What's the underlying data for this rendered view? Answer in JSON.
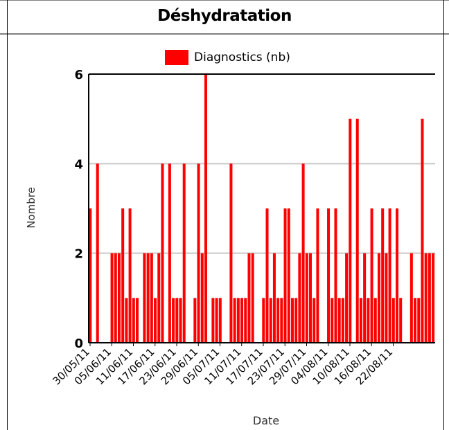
{
  "chart_data": {
    "type": "bar",
    "title": "Déshydratation",
    "xlabel": "Date",
    "ylabel": "Nombre",
    "ylim": [
      0,
      6
    ],
    "yticks": [
      0,
      2,
      4,
      6
    ],
    "grid": true,
    "legend_position": "top",
    "color": "#ff0000",
    "series": [
      {
        "name": "Diagnostics (nb)",
        "values": [
          3,
          0,
          4,
          0,
          0,
          0,
          2,
          2,
          2,
          3,
          1,
          3,
          1,
          1,
          0,
          2,
          2,
          2,
          1,
          2,
          4,
          0,
          4,
          1,
          1,
          1,
          4,
          0,
          0,
          1,
          4,
          2,
          6,
          0,
          1,
          1,
          1,
          0,
          0,
          4,
          1,
          1,
          1,
          1,
          2,
          2,
          0,
          0,
          1,
          3,
          1,
          2,
          1,
          1,
          3,
          3,
          1,
          1,
          2,
          4,
          2,
          2,
          1,
          3,
          0,
          0,
          3,
          1,
          3,
          1,
          1,
          2,
          5,
          0,
          5,
          1,
          2,
          1,
          3,
          1,
          2,
          3,
          2,
          3,
          1,
          3,
          1,
          0,
          0,
          2,
          1,
          1,
          5,
          2,
          2,
          2
        ]
      }
    ],
    "x_tick_labels": [
      "30/05/11",
      "05/06/11",
      "11/06/11",
      "17/06/11",
      "23/06/11",
      "29/06/11",
      "05/07/11",
      "11/07/11",
      "17/07/11",
      "23/07/11",
      "29/07/11",
      "04/08/11",
      "10/08/11",
      "16/08/11",
      "22/08/11"
    ],
    "x_tick_interval_days": 6
  }
}
